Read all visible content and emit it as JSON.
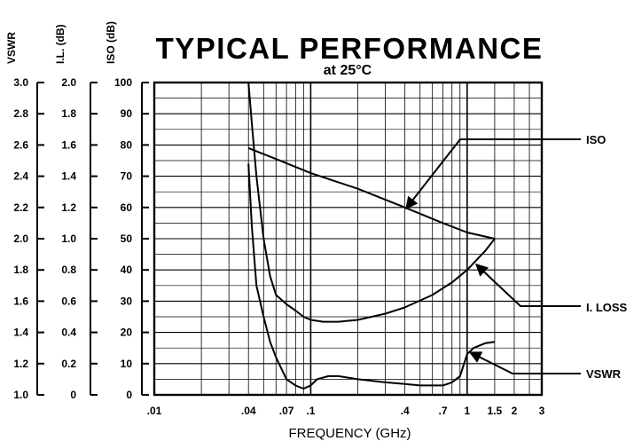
{
  "chart_data": {
    "type": "line",
    "title": "TYPICAL PERFORMANCE",
    "subtitle": "at 25°C",
    "xlabel": "FREQUENCY (GHz)",
    "x_scale": "log",
    "xlim": [
      0.01,
      3
    ],
    "x_tick_labels": [
      ".01",
      ".04",
      ".07",
      ".1",
      ".4",
      ".7",
      "1",
      "1.5",
      "2",
      "3"
    ],
    "y_axes": [
      {
        "label": "VSWR",
        "ylim": [
          1.0,
          3.0
        ],
        "tick_labels": [
          "1.0",
          "1.2",
          "1.4",
          "1.6",
          "1.8",
          "2.0",
          "2.2",
          "2.4",
          "2.6",
          "2.8",
          "3.0"
        ]
      },
      {
        "label": "I.L. (dB)",
        "ylim": [
          0,
          2.0
        ],
        "tick_labels": [
          "0",
          "0.2",
          "0.4",
          "0.6",
          "0.8",
          "1.0",
          "1.2",
          "1.4",
          "1.6",
          "1.8",
          "2.0"
        ]
      },
      {
        "label": "ISO (dB)",
        "ylim": [
          0,
          100
        ],
        "tick_labels": [
          "0",
          "10",
          "20",
          "30",
          "40",
          "50",
          "60",
          "70",
          "80",
          "90",
          "100"
        ]
      }
    ],
    "grid": true,
    "series": [
      {
        "name": "ISO",
        "axis": "ISO (dB)",
        "x": [
          0.04,
          0.06,
          0.1,
          0.2,
          0.4,
          0.7,
          1.0,
          1.5
        ],
        "y": [
          79,
          75.5,
          71,
          66,
          60,
          55,
          52,
          50
        ]
      },
      {
        "name": "I. LOSS",
        "axis": "I.L. (dB)",
        "x": [
          0.04,
          0.042,
          0.045,
          0.05,
          0.055,
          0.06,
          0.07,
          0.08,
          0.09,
          0.1,
          0.12,
          0.15,
          0.2,
          0.3,
          0.4,
          0.6,
          0.8,
          1.0,
          1.3,
          1.5
        ],
        "y": [
          2.0,
          1.74,
          1.4,
          1.0,
          0.76,
          0.64,
          0.58,
          0.54,
          0.5,
          0.48,
          0.468,
          0.468,
          0.48,
          0.52,
          0.56,
          0.64,
          0.72,
          0.8,
          0.92,
          1.0
        ]
      },
      {
        "name": "VSWR",
        "axis": "VSWR",
        "x": [
          0.04,
          0.042,
          0.045,
          0.05,
          0.055,
          0.06,
          0.07,
          0.08,
          0.09,
          0.1,
          0.11,
          0.13,
          0.15,
          0.2,
          0.3,
          0.4,
          0.5,
          0.7,
          0.8,
          0.9,
          1.0,
          1.1,
          1.3,
          1.5
        ],
        "y": [
          2.48,
          2.08,
          1.7,
          1.5,
          1.34,
          1.24,
          1.1,
          1.06,
          1.04,
          1.06,
          1.1,
          1.12,
          1.12,
          1.1,
          1.08,
          1.07,
          1.06,
          1.06,
          1.08,
          1.12,
          1.26,
          1.3,
          1.33,
          1.34
        ]
      }
    ],
    "annotations": [
      "ISO",
      "I. LOSS",
      "VSWR"
    ]
  }
}
